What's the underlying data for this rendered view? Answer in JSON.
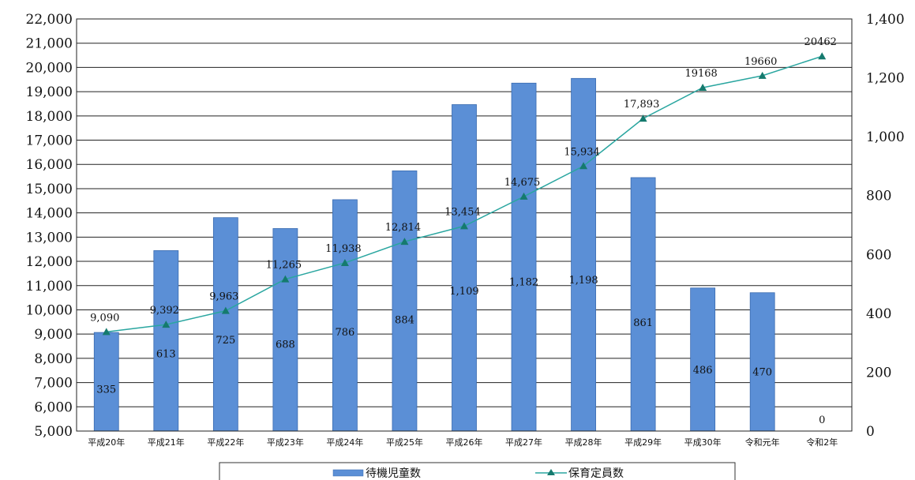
{
  "chart_data": {
    "type": "bar",
    "categories": [
      "平成20年",
      "平成21年",
      "平成22年",
      "平成23年",
      "平成24年",
      "平成25年",
      "平成26年",
      "平成27年",
      "平成28年",
      "平成29年",
      "平成30年",
      "令和元年",
      "令和2年"
    ],
    "series": [
      {
        "name": "待機児童数",
        "type": "bar",
        "axis": "right",
        "values": [
          335,
          613,
          725,
          688,
          786,
          884,
          1109,
          1182,
          1198,
          861,
          486,
          470,
          0
        ],
        "labels": [
          "335",
          "613",
          "725",
          "688",
          "786",
          "884",
          "1,109",
          "1,182",
          "1,198",
          "861",
          "486",
          "470",
          "0"
        ],
        "color": "#5b8fd6"
      },
      {
        "name": "保育定員数",
        "type": "line",
        "axis": "left",
        "values": [
          9090,
          9392,
          9963,
          11265,
          11938,
          12814,
          13454,
          14675,
          15934,
          17893,
          19168,
          19660,
          20462
        ],
        "labels": [
          "9,090",
          "9,392",
          "9,963",
          "11,265",
          "11,938",
          "12,814",
          "13,454",
          "14,675",
          "15,934",
          "17,893",
          "19168",
          "19660",
          "20462"
        ],
        "color": "#2aa6a0",
        "marker_color": "#157a6e"
      }
    ],
    "left_axis": {
      "ylim": [
        5000,
        22000
      ],
      "ticks": [
        "5,000",
        "6,000",
        "7,000",
        "8,000",
        "9,000",
        "10,000",
        "11,000",
        "12,000",
        "13,000",
        "14,000",
        "15,000",
        "16,000",
        "17,000",
        "18,000",
        "19,000",
        "20,000",
        "21,000",
        "22,000"
      ]
    },
    "right_axis": {
      "ylim": [
        0,
        1400
      ],
      "ticks": [
        "0",
        "200",
        "400",
        "600",
        "800",
        "1,000",
        "1,200",
        "1,400"
      ]
    },
    "grid": true,
    "legend_position": "bottom"
  }
}
